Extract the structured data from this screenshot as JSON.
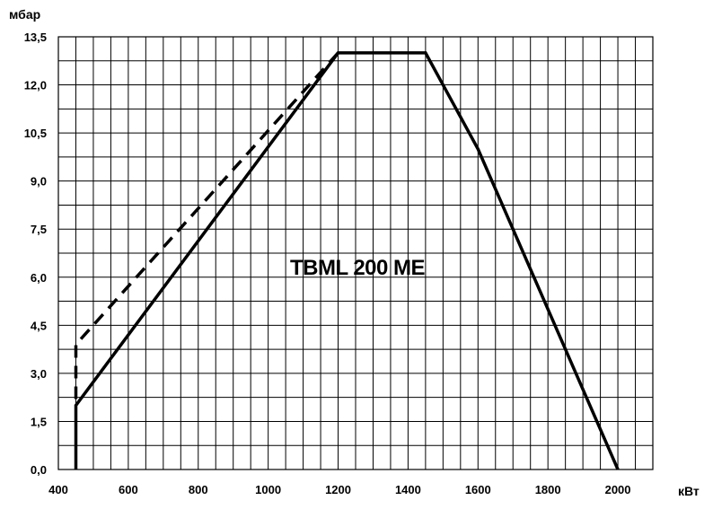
{
  "chart_data": {
    "type": "line",
    "title": "TBML 200 ME",
    "xlabel": "кВт",
    "ylabel": "мбар",
    "xlim": [
      400,
      2100
    ],
    "ylim": [
      0,
      13.5
    ],
    "grid": true,
    "x_ticks": [
      400,
      600,
      800,
      1000,
      1200,
      1400,
      1600,
      1800,
      2000
    ],
    "x_tick_labels": [
      "400",
      "600",
      "800",
      "1000",
      "1200",
      "1400",
      "1600",
      "1800",
      "2000"
    ],
    "y_ticks": [
      0,
      1.5,
      3,
      4.5,
      6,
      7.5,
      9,
      10.5,
      12,
      13.5
    ],
    "y_tick_labels": [
      "0,0",
      "1,5",
      "3,0",
      "4,5",
      "6,0",
      "7,5",
      "9,0",
      "10,5",
      "12,0",
      "13,5"
    ],
    "series": [
      {
        "style": "solid",
        "x": [
          450,
          450,
          1200,
          1450,
          1600,
          2000
        ],
        "y": [
          0,
          2.0,
          13.0,
          13.0,
          10.0,
          0
        ]
      },
      {
        "style": "dashed",
        "x": [
          450,
          450,
          1200
        ],
        "y": [
          2.2,
          3.9,
          13.0
        ]
      }
    ]
  }
}
